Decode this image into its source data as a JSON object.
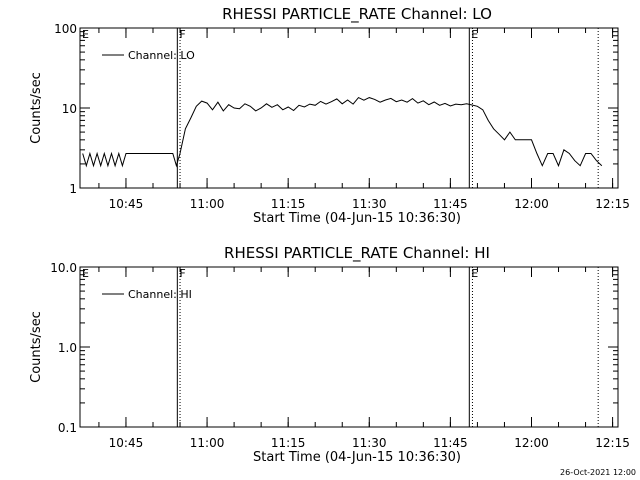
{
  "footer_timestamp": "26-Oct-2021 12:00",
  "chart_data": [
    {
      "type": "line",
      "title": "RHESSI PARTICLE_RATE Channel: LO",
      "xlabel": "Start Time (04-Jun-15 10:36:30)",
      "ylabel": "Counts/sec",
      "y_scale": "log",
      "ylim": [
        1,
        100
      ],
      "xlim": [
        "10:36:30",
        "12:16:00"
      ],
      "x_unit": "time of day (04-Jun-15)",
      "x_tick_labels": [
        "10:45",
        "11:00",
        "11:15",
        "11:30",
        "11:45",
        "12:00",
        "12:15"
      ],
      "y_tick_labels": [
        "1",
        "10",
        "100"
      ],
      "legend": {
        "position": "top-left",
        "entries": [
          "Channel: LO"
        ]
      },
      "series": [
        {
          "name": "Channel: LO",
          "x": [
            "10:37:00",
            "10:37:40",
            "10:38:20",
            "10:39:00",
            "10:39:40",
            "10:40:20",
            "10:41:00",
            "10:41:40",
            "10:42:20",
            "10:43:00",
            "10:43:40",
            "10:44:20",
            "10:45:00",
            "10:46:00",
            "10:47:00",
            "10:48:00",
            "10:49:00",
            "10:50:00",
            "10:51:00",
            "10:52:00",
            "10:53:00",
            "10:53:40",
            "10:54:20",
            "10:55:00",
            "10:56:00",
            "10:57:00",
            "10:58:00",
            "10:59:00",
            "11:00:00",
            "11:01:00",
            "11:02:00",
            "11:03:00",
            "11:04:00",
            "11:05:00",
            "11:06:00",
            "11:07:00",
            "11:08:00",
            "11:09:00",
            "11:10:00",
            "11:11:00",
            "11:12:00",
            "11:13:00",
            "11:14:00",
            "11:15:00",
            "11:16:00",
            "11:17:00",
            "11:18:00",
            "11:19:00",
            "11:20:00",
            "11:21:00",
            "11:22:00",
            "11:23:00",
            "11:24:00",
            "11:25:00",
            "11:26:00",
            "11:27:00",
            "11:28:00",
            "11:29:00",
            "11:30:00",
            "11:31:00",
            "11:32:00",
            "11:33:00",
            "11:34:00",
            "11:35:00",
            "11:36:00",
            "11:37:00",
            "11:38:00",
            "11:39:00",
            "11:40:00",
            "11:41:00",
            "11:42:00",
            "11:43:00",
            "11:44:00",
            "11:45:00",
            "11:46:00",
            "11:47:00",
            "11:48:00",
            "11:49:00",
            "11:50:00",
            "11:51:00",
            "11:52:00",
            "11:53:00",
            "11:54:00",
            "11:55:00",
            "11:56:00",
            "11:57:00",
            "11:58:00",
            "11:59:00",
            "12:00:00",
            "12:01:00",
            "12:02:00",
            "12:03:00",
            "12:04:00",
            "12:05:00",
            "12:06:00",
            "12:07:00",
            "12:08:00",
            "12:09:00",
            "12:10:00",
            "12:11:00",
            "12:12:00",
            "12:13:00"
          ],
          "y": [
            2.7,
            1.9,
            2.7,
            1.9,
            2.7,
            1.9,
            2.7,
            1.9,
            2.7,
            1.9,
            2.7,
            1.9,
            2.7,
            2.7,
            2.7,
            2.7,
            2.7,
            2.7,
            2.7,
            2.7,
            2.7,
            2.7,
            1.9,
            2.7,
            5.5,
            7.5,
            10.5,
            12.2,
            11.5,
            9.5,
            11.8,
            9.2,
            11.0,
            10.0,
            9.8,
            11.3,
            10.5,
            9.2,
            10.0,
            11.3,
            10.2,
            11.0,
            9.5,
            10.3,
            9.3,
            10.8,
            10.3,
            11.2,
            10.8,
            12.1,
            11.2,
            12.0,
            13.0,
            11.3,
            12.6,
            11.2,
            13.5,
            12.5,
            13.5,
            12.8,
            11.8,
            12.6,
            13.2,
            12.0,
            12.6,
            11.8,
            13.1,
            11.5,
            12.3,
            11.0,
            11.9,
            10.8,
            11.4,
            10.6,
            11.2,
            11.0,
            11.3,
            10.9,
            10.5,
            9.5,
            7.0,
            5.5,
            4.7,
            4.0,
            5.0,
            4.0,
            4.0,
            4.0,
            4.0,
            2.7,
            1.9,
            2.7,
            2.7,
            1.9,
            3.0,
            2.7,
            2.2,
            1.9,
            2.7,
            2.7,
            2.2,
            1.9
          ]
        }
      ],
      "markers": [
        {
          "label": "E",
          "time": "10:36:30"
        },
        {
          "label": "F",
          "time": "10:54:30",
          "time_dotted": "10:55:00"
        },
        {
          "label": "E",
          "time": "11:48:30",
          "time_dotted": "11:49:05"
        },
        {
          "time_dotted": "12:12:20"
        }
      ]
    },
    {
      "type": "line",
      "title": "RHESSI PARTICLE_RATE Channel: HI",
      "xlabel": "Start Time (04-Jun-15 10:36:30)",
      "ylabel": "Counts/sec",
      "y_scale": "log",
      "ylim": [
        0.1,
        10
      ],
      "xlim": [
        "10:36:30",
        "12:16:00"
      ],
      "x_unit": "time of day (04-Jun-15)",
      "x_tick_labels": [
        "10:45",
        "11:00",
        "11:15",
        "11:30",
        "11:45",
        "12:00",
        "12:15"
      ],
      "y_tick_labels": [
        "0.1",
        "1.0",
        "10.0"
      ],
      "legend": {
        "position": "top-left",
        "entries": [
          "Channel: HI"
        ]
      },
      "series": [
        {
          "name": "Channel: HI",
          "x": [],
          "y": []
        }
      ],
      "markers": [
        {
          "label": "E",
          "time": "10:36:30"
        },
        {
          "label": "F",
          "time": "10:54:30",
          "time_dotted": "10:55:00"
        },
        {
          "label": "E",
          "time": "11:48:30",
          "time_dotted": "11:49:05"
        },
        {
          "time_dotted": "12:12:20"
        }
      ]
    }
  ]
}
